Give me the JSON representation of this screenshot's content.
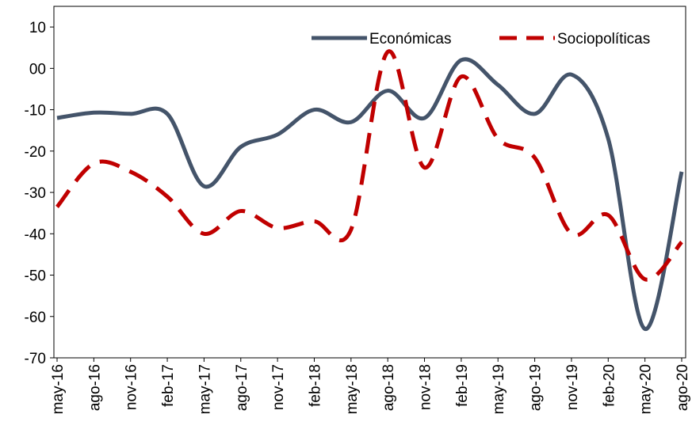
{
  "chart_data": {
    "type": "line",
    "categories": [
      "may-16",
      "ago-16",
      "nov-16",
      "feb-17",
      "may-17",
      "ago-17",
      "nov-17",
      "feb-18",
      "may-18",
      "ago-18",
      "nov-18",
      "feb-19",
      "may-19",
      "ago-19",
      "nov-19",
      "feb-20",
      "may-20",
      "ago-20"
    ],
    "series": [
      {
        "name": "Económicas",
        "color": "#44546a",
        "dash": false,
        "values": [
          -12,
          -10.7,
          -11,
          -11,
          -28.5,
          -19,
          -16,
          -10,
          -13,
          -5.4,
          -12,
          2,
          -4,
          -11,
          -1.5,
          -17,
          -63,
          -25
        ]
      },
      {
        "name": "Sociopolíticas",
        "color": "#c00000",
        "dash": true,
        "values": [
          -33.5,
          -23,
          -25,
          -31,
          -40,
          -34.5,
          -38.6,
          -37,
          -39,
          4,
          -24,
          -2,
          -17,
          -21.6,
          -40,
          -35.5,
          -51,
          -42
        ]
      }
    ],
    "ylim": [
      -70,
      15
    ],
    "yticks": [
      10,
      {
        "value": 0,
        "label": "00"
      },
      -10,
      -20,
      -30,
      -40,
      -50,
      -60,
      -70
    ],
    "legend": "upper right"
  }
}
